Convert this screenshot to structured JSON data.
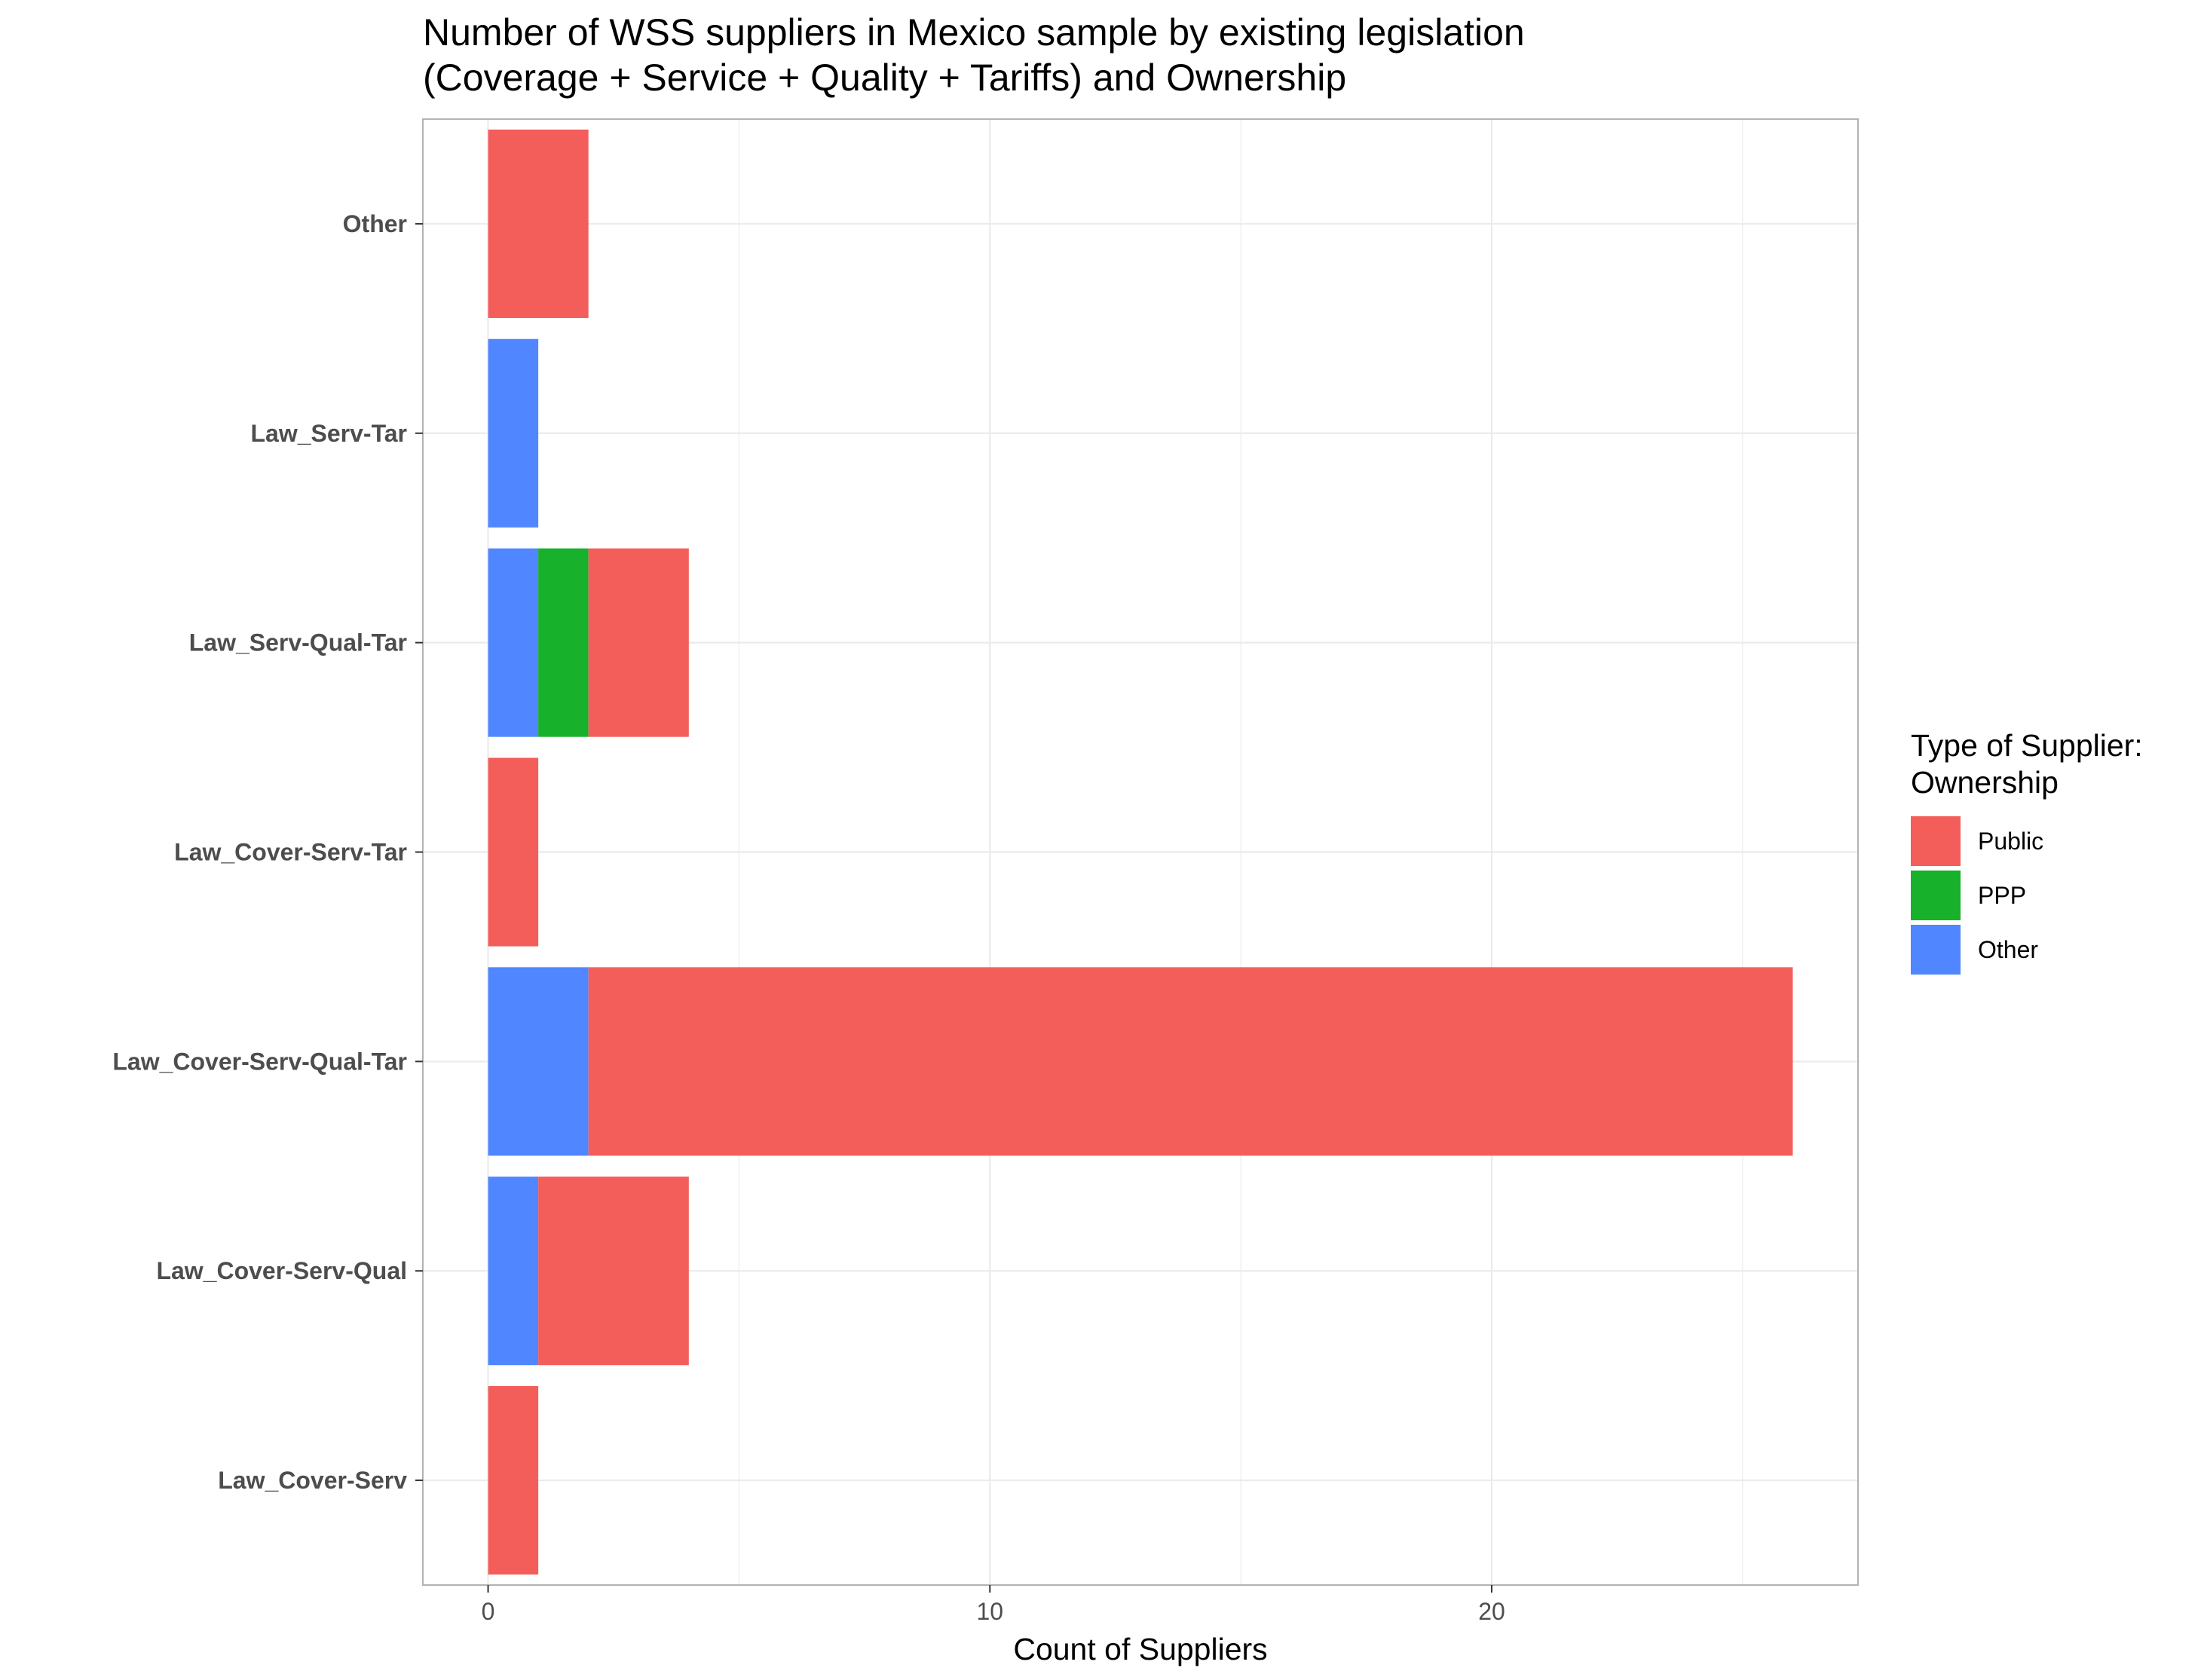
{
  "chart_data": {
    "type": "bar",
    "orientation": "horizontal",
    "stacked": true,
    "title_lines": [
      "Number of WSS suppliers in Mexico sample by existing legislation",
      "(Coverage + Service + Quality + Tariffs) and Ownership"
    ],
    "xlabel": "Count of Suppliers",
    "ylabel": "",
    "xlim": [
      -1.3,
      27.3
    ],
    "xticks": [
      0,
      10,
      20
    ],
    "xtick_labels": [
      "0",
      "10",
      "20"
    ],
    "categories": [
      "Law_Cover-Serv",
      "Law_Cover-Serv-Qual",
      "Law_Cover-Serv-Qual-Tar",
      "Law_Cover-Serv-Tar",
      "Law_Serv-Qual-Tar",
      "Law_Serv-Tar",
      "Other"
    ],
    "stack_order": [
      "Other",
      "PPP",
      "Public"
    ],
    "series": [
      {
        "name": "Public",
        "color": "#F35E5A",
        "values": [
          1,
          3,
          24,
          1,
          2,
          0,
          2
        ]
      },
      {
        "name": "PPP",
        "color": "#17B12B",
        "values": [
          0,
          0,
          0,
          0,
          1,
          0,
          0
        ]
      },
      {
        "name": "Other",
        "color": "#5086FF",
        "values": [
          0,
          1,
          2,
          0,
          1,
          1,
          0
        ]
      }
    ],
    "legend": {
      "title_lines": [
        "Type of Supplier:",
        "Ownership"
      ],
      "position": "right",
      "items": [
        "Public",
        "PPP",
        "Other"
      ]
    },
    "grid": true,
    "panel_border": true
  }
}
